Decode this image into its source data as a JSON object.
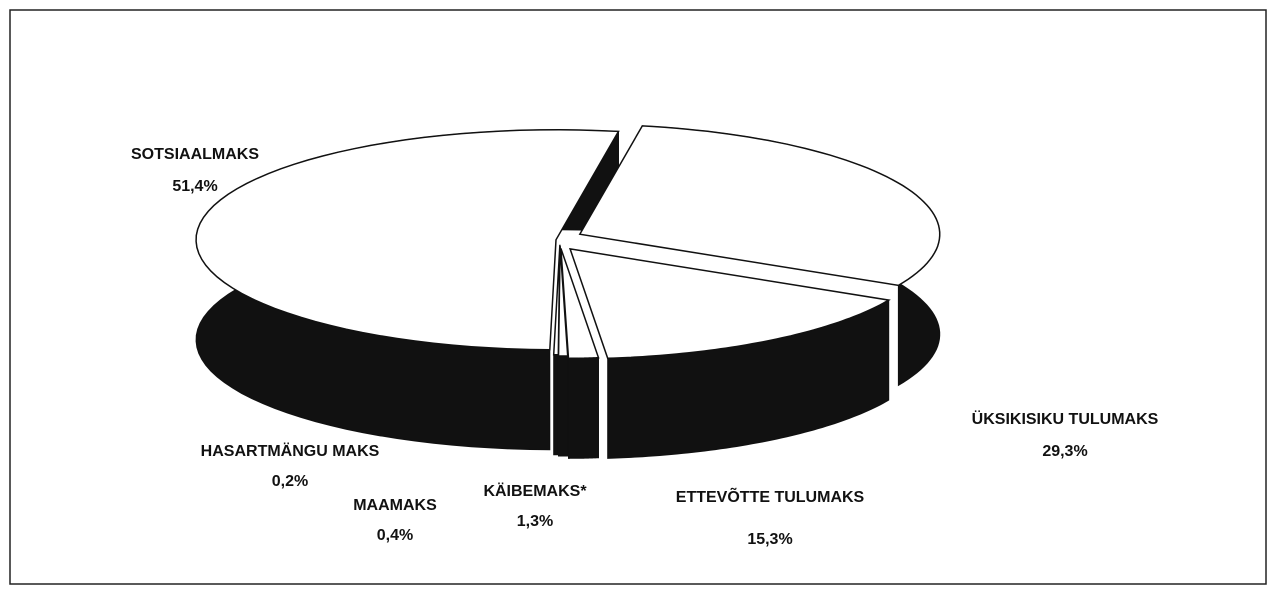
{
  "chart_data": {
    "type": "pie",
    "categories": [
      "ÜKSIKISIKU TULUMAKS",
      "ETTEVÕTTE TULUMAKS",
      "KÄIBEMAKS*",
      "MAAMAKS",
      "HASARTMÄNGU MAKS",
      "SOTSIAALMAKS"
    ],
    "values": [
      29.3,
      15.3,
      1.3,
      0.4,
      0.2,
      51.4
    ],
    "value_labels": [
      "29,3%",
      "15,3%",
      "1,3%",
      "0,4%",
      "0,2%",
      "51,4%"
    ],
    "color": "#ffffff",
    "side_color": "#111111"
  }
}
